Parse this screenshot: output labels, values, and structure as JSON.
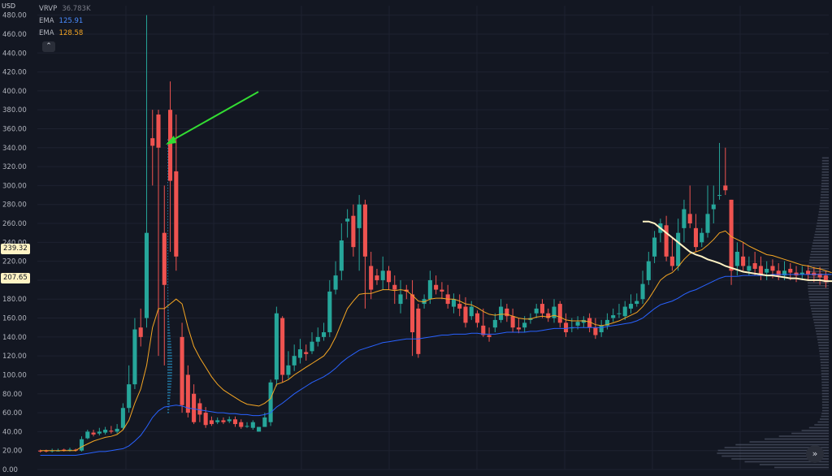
{
  "axis": {
    "unit": "USD"
  },
  "legend": {
    "vrvp": {
      "label": "VRVP",
      "value": "36.783K",
      "color": "#787b86"
    },
    "ema1": {
      "label": "EMA",
      "value": "125.91",
      "color": "#2962ff"
    },
    "ema2": {
      "label": "EMA",
      "value": "128.58",
      "color": "#f5a623"
    },
    "collapse_icon": "chevron-up-icon"
  },
  "price_tags": {
    "level1": "239.32",
    "level2": "207.65"
  },
  "scroll_icon": "double-chevron-right-icon",
  "chart_data": {
    "type": "candlestick",
    "ylim": [
      0,
      490
    ],
    "y_ticks": [
      "0.00",
      "20.00",
      "40.00",
      "60.00",
      "80.00",
      "100.00",
      "120.00",
      "140.00",
      "160.00",
      "180.00",
      "200.00",
      "220.00",
      "240.00",
      "260.00",
      "280.00",
      "300.00",
      "320.00",
      "340.00",
      "360.00",
      "380.00",
      "400.00",
      "420.00",
      "440.00",
      "460.00",
      "480.00"
    ],
    "grid": true,
    "colors": {
      "up": "#26a69a",
      "down": "#ef5350",
      "vwap": "#fff3c4",
      "ema_fast": "#f5a623",
      "ema_slow": "#2962ff",
      "arrow": "#33dd33"
    },
    "candles": [
      [
        20,
        19,
        21,
        18
      ],
      [
        20,
        19,
        21,
        18
      ],
      [
        20,
        20,
        22,
        18
      ],
      [
        20,
        20,
        22,
        19
      ],
      [
        21,
        20,
        22,
        19
      ],
      [
        20,
        21,
        23,
        19
      ],
      [
        21,
        20,
        22,
        19
      ],
      [
        20,
        32,
        35,
        19
      ],
      [
        33,
        40,
        42,
        32
      ],
      [
        39,
        37,
        42,
        35
      ],
      [
        38,
        40,
        44,
        36
      ],
      [
        39,
        42,
        45,
        37
      ],
      [
        41,
        40,
        46,
        38
      ],
      [
        40,
        43,
        48,
        38
      ],
      [
        44,
        65,
        70,
        42
      ],
      [
        65,
        90,
        110,
        60
      ],
      [
        90,
        148,
        160,
        85
      ],
      [
        150,
        140,
        170,
        130
      ],
      [
        160,
        250,
        480,
        150
      ],
      [
        350,
        342,
        380,
        300
      ],
      [
        375,
        340,
        380,
        120
      ],
      [
        250,
        195,
        300,
        110
      ],
      [
        380,
        305,
        410,
        230
      ],
      [
        315,
        225,
        375,
        210
      ],
      [
        140,
        68,
        155,
        60
      ],
      [
        100,
        60,
        110,
        55
      ],
      [
        80,
        50,
        90,
        48
      ],
      [
        70,
        58,
        75,
        50
      ],
      [
        60,
        47,
        66,
        44
      ],
      [
        52,
        48,
        56,
        46
      ],
      [
        50,
        52,
        55,
        48
      ],
      [
        52,
        50,
        55,
        48
      ],
      [
        51,
        53,
        56,
        49
      ],
      [
        53,
        48,
        56,
        45
      ],
      [
        50,
        45,
        53,
        43
      ],
      [
        46,
        46,
        50,
        44
      ],
      [
        44,
        50,
        52,
        42
      ],
      [
        40,
        45,
        45,
        40
      ],
      [
        45,
        55,
        60,
        45
      ],
      [
        50,
        92,
        95,
        46
      ],
      [
        95,
        165,
        172,
        88
      ],
      [
        160,
        100,
        162,
        92
      ],
      [
        100,
        110,
        125,
        96
      ],
      [
        110,
        120,
        132,
        104
      ],
      [
        118,
        127,
        138,
        112
      ],
      [
        124,
        122,
        132,
        115
      ],
      [
        125,
        135,
        145,
        122
      ],
      [
        135,
        140,
        150,
        130
      ],
      [
        140,
        145,
        155,
        136
      ],
      [
        145,
        188,
        200,
        140
      ],
      [
        190,
        205,
        220,
        185
      ],
      [
        210,
        242,
        260,
        200
      ],
      [
        262,
        265,
        275,
        245
      ],
      [
        268,
        235,
        280,
        225
      ],
      [
        255,
        280,
        290,
        210
      ],
      [
        280,
        225,
        285,
        170
      ],
      [
        215,
        190,
        230,
        180
      ],
      [
        205,
        200,
        212,
        195
      ],
      [
        200,
        210,
        225,
        190
      ],
      [
        210,
        198,
        215,
        190
      ],
      [
        195,
        190,
        205,
        175
      ],
      [
        175,
        185,
        200,
        165
      ],
      [
        190,
        188,
        195,
        180
      ],
      [
        185,
        145,
        200,
        120
      ],
      [
        170,
        122,
        175,
        118
      ],
      [
        175,
        180,
        185,
        170
      ],
      [
        180,
        200,
        210,
        175
      ],
      [
        195,
        190,
        205,
        185
      ],
      [
        190,
        188,
        198,
        180
      ],
      [
        185,
        175,
        195,
        170
      ],
      [
        172,
        180,
        186,
        165
      ],
      [
        175,
        170,
        185,
        162
      ],
      [
        172,
        155,
        182,
        150
      ],
      [
        162,
        172,
        178,
        158
      ],
      [
        165,
        155,
        168,
        150
      ],
      [
        152,
        142,
        170,
        140
      ],
      [
        142,
        140,
        150,
        135
      ],
      [
        150,
        158,
        165,
        145
      ],
      [
        158,
        172,
        180,
        155
      ],
      [
        170,
        162,
        175,
        156
      ],
      [
        162,
        150,
        170,
        145
      ],
      [
        150,
        148,
        160,
        144
      ],
      [
        150,
        155,
        162,
        145
      ],
      [
        158,
        160,
        165,
        154
      ],
      [
        165,
        170,
        175,
        160
      ],
      [
        175,
        165,
        180,
        160
      ],
      [
        165,
        160,
        170,
        156
      ],
      [
        160,
        172,
        180,
        155
      ],
      [
        175,
        155,
        178,
        150
      ],
      [
        155,
        145,
        165,
        140
      ],
      [
        150,
        150,
        160,
        145
      ],
      [
        152,
        156,
        162,
        148
      ],
      [
        155,
        158,
        162,
        150
      ],
      [
        160,
        150,
        165,
        145
      ],
      [
        150,
        142,
        160,
        138
      ],
      [
        145,
        152,
        158,
        140
      ],
      [
        152,
        158,
        165,
        148
      ],
      [
        160,
        163,
        170,
        156
      ],
      [
        165,
        165,
        175,
        160
      ],
      [
        162,
        172,
        178,
        158
      ],
      [
        170,
        175,
        185,
        165
      ],
      [
        175,
        178,
        186,
        172
      ],
      [
        180,
        196,
        210,
        175
      ],
      [
        200,
        220,
        230,
        195
      ],
      [
        225,
        245,
        252,
        218
      ],
      [
        250,
        260,
        265,
        240
      ],
      [
        258,
        225,
        268,
        220
      ],
      [
        225,
        215,
        245,
        210
      ],
      [
        215,
        250,
        265,
        210
      ],
      [
        255,
        275,
        285,
        240
      ],
      [
        270,
        260,
        300,
        255
      ],
      [
        255,
        235,
        270,
        230
      ],
      [
        240,
        250,
        255,
        235
      ],
      [
        250,
        270,
        300,
        245
      ],
      [
        275,
        280,
        300,
        260
      ],
      [
        290,
        290,
        345,
        285
      ],
      [
        300,
        295,
        340,
        290
      ],
      [
        285,
        210,
        285,
        195
      ],
      [
        215,
        230,
        240,
        205
      ],
      [
        225,
        215,
        240,
        210
      ],
      [
        210,
        215,
        225,
        205
      ],
      [
        218,
        212,
        230,
        205
      ],
      [
        215,
        205,
        225,
        200
      ],
      [
        208,
        212,
        220,
        200
      ],
      [
        215,
        210,
        222,
        202
      ],
      [
        210,
        205,
        218,
        200
      ],
      [
        205,
        210,
        220,
        200
      ],
      [
        212,
        208,
        218,
        200
      ],
      [
        208,
        205,
        215,
        198
      ],
      [
        206,
        208,
        215,
        200
      ],
      [
        210,
        206,
        216,
        200
      ],
      [
        208,
        205,
        214,
        198
      ],
      [
        207,
        203,
        214,
        195
      ],
      [
        205,
        198,
        210,
        192
      ]
    ],
    "ema_fast": [
      20,
      20,
      20,
      20,
      20,
      20,
      20,
      24,
      27,
      30,
      32,
      34,
      35,
      37,
      42,
      52,
      70,
      85,
      110,
      150,
      170,
      170,
      175,
      180,
      175,
      150,
      130,
      118,
      108,
      98,
      90,
      84,
      80,
      76,
      72,
      69,
      68,
      67,
      70,
      75,
      90,
      92,
      95,
      100,
      104,
      108,
      112,
      116,
      120,
      128,
      140,
      155,
      170,
      178,
      185,
      186,
      186,
      188,
      190,
      190,
      189,
      190,
      189,
      184,
      178,
      177,
      180,
      181,
      181,
      180,
      180,
      178,
      175,
      174,
      171,
      167,
      164,
      163,
      164,
      164,
      162,
      160,
      159,
      159,
      161,
      162,
      161,
      163,
      161,
      158,
      157,
      157,
      157,
      156,
      153,
      152,
      153,
      155,
      157,
      160,
      163,
      166,
      172,
      180,
      190,
      200,
      205,
      208,
      214,
      222,
      228,
      230,
      232,
      237,
      243,
      250,
      252,
      246,
      243,
      240,
      236,
      233,
      230,
      227,
      226,
      224,
      222,
      220,
      218,
      216,
      215,
      213,
      212,
      210,
      208
    ],
    "ema_slow": [
      15,
      15,
      15,
      15,
      15,
      15,
      15,
      16,
      17,
      18,
      19,
      19,
      20,
      21,
      22,
      25,
      30,
      36,
      45,
      55,
      62,
      66,
      67,
      68,
      67,
      65,
      64,
      63,
      62,
      61,
      60,
      60,
      59,
      59,
      58,
      58,
      57,
      57,
      58,
      60,
      66,
      70,
      75,
      80,
      84,
      88,
      92,
      95,
      98,
      102,
      107,
      113,
      118,
      122,
      126,
      128,
      130,
      132,
      134,
      135,
      136,
      137,
      138,
      138,
      138,
      139,
      140,
      141,
      142,
      142,
      143,
      143,
      143,
      144,
      144,
      143,
      143,
      143,
      144,
      145,
      145,
      145,
      145,
      146,
      146,
      147,
      148,
      149,
      149,
      149,
      150,
      150,
      150,
      150,
      150,
      150,
      151,
      152,
      153,
      154,
      155,
      157,
      160,
      165,
      170,
      174,
      176,
      178,
      181,
      185,
      188,
      190,
      193,
      196,
      199,
      202,
      204,
      204,
      204,
      205,
      205,
      205,
      205,
      205,
      206,
      206,
      206,
      206,
      206,
      206,
      206,
      206,
      206,
      206,
      206
    ],
    "vwap_start": 102,
    "vwap": [
      262,
      262,
      260,
      255,
      250,
      245,
      240,
      235,
      230,
      227,
      225,
      222,
      220,
      218,
      215,
      213,
      211,
      209,
      208,
      207,
      206,
      205,
      205,
      204,
      203,
      202,
      202,
      201,
      200,
      200,
      200,
      199,
      199,
      199,
      198,
      198,
      198,
      198,
      197,
      197,
      197,
      197,
      197,
      197,
      196,
      196,
      196,
      196,
      196,
      196,
      196,
      196,
      196,
      196,
      196,
      196,
      196,
      197,
      197,
      200,
      205,
      210,
      230,
      230,
      210,
      210,
      212,
      213,
      214,
      215,
      216,
      217,
      218,
      219,
      220,
      221,
      222,
      223,
      224,
      225,
      226,
      227,
      228,
      229,
      230,
      231,
      232,
      233,
      234,
      236,
      238,
      239
    ]
  }
}
